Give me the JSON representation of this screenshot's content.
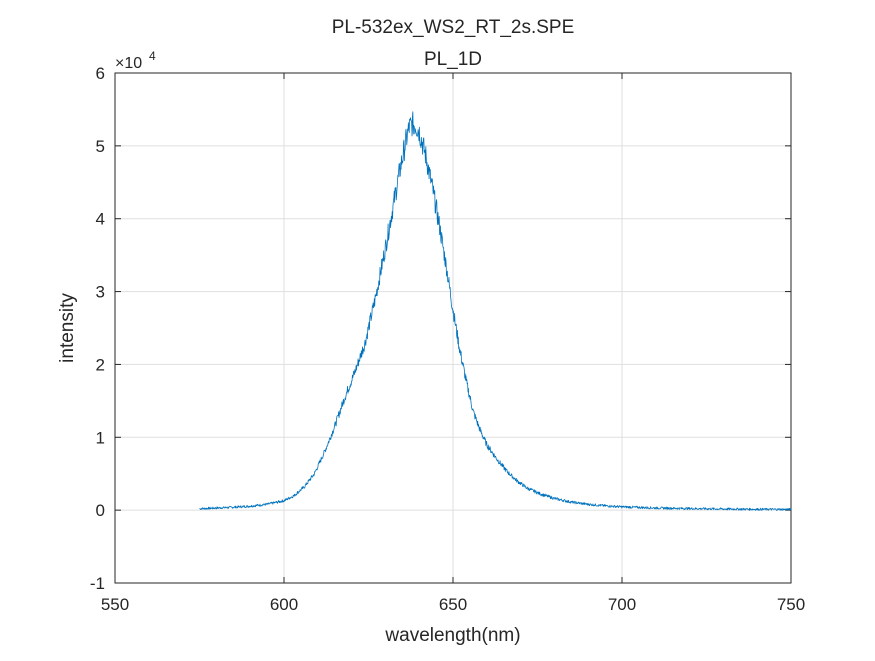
{
  "chart_data": {
    "type": "line",
    "title": "PL-532ex_WS2_RT_2s.SPE",
    "subtitle": "PL_1D",
    "xlabel": "wavelength(nm)",
    "ylabel": "intensity",
    "xlim": [
      550,
      750
    ],
    "ylim": [
      -10000,
      60000
    ],
    "x_ticks": [
      550,
      600,
      650,
      700,
      750
    ],
    "x_tick_labels": [
      "550",
      "600",
      "650",
      "700",
      "750"
    ],
    "y_ticks": [
      -10000,
      0,
      10000,
      20000,
      30000,
      40000,
      50000,
      60000
    ],
    "y_tick_labels": [
      "-1",
      "0",
      "1",
      "2",
      "3",
      "4",
      "5",
      "6"
    ],
    "y_exponent_base": "×10",
    "y_exponent_power": "4",
    "grid": true,
    "series": [
      {
        "name": "PL_1D",
        "color": "#0072bd",
        "x": [
          575,
          580,
          585,
          590,
          595,
          600,
          603,
          606,
          609,
          612,
          615,
          618,
          621,
          624,
          627,
          630,
          632,
          634,
          636,
          637,
          638,
          639,
          640,
          642,
          644,
          646,
          648,
          650,
          652,
          654,
          656,
          658,
          660,
          663,
          666,
          669,
          672,
          676,
          680,
          685,
          690,
          695,
          700,
          710,
          720,
          730,
          740,
          750
        ],
        "values": [
          200,
          300,
          400,
          550,
          800,
          1300,
          2000,
          3200,
          5000,
          8000,
          11500,
          15500,
          19000,
          23000,
          29000,
          36000,
          41000,
          46000,
          50500,
          52500,
          53000,
          52800,
          52000,
          48500,
          44000,
          39000,
          33500,
          27500,
          22000,
          17500,
          13500,
          11000,
          9000,
          7000,
          5300,
          4000,
          3000,
          2200,
          1600,
          1100,
          800,
          600,
          450,
          300,
          220,
          160,
          120,
          100
        ]
      }
    ]
  }
}
